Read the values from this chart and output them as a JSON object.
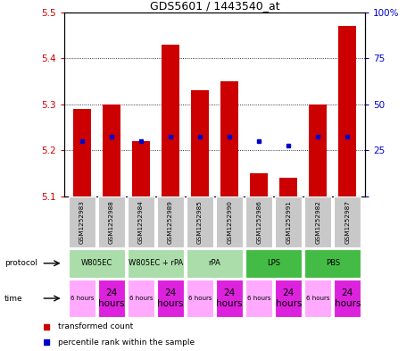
{
  "title": "GDS5601 / 1443540_at",
  "samples": [
    "GSM1252983",
    "GSM1252988",
    "GSM1252984",
    "GSM1252989",
    "GSM1252985",
    "GSM1252990",
    "GSM1252986",
    "GSM1252991",
    "GSM1252982",
    "GSM1252987"
  ],
  "bar_bottoms": [
    5.1,
    5.1,
    5.1,
    5.1,
    5.1,
    5.1,
    5.1,
    5.1,
    5.1,
    5.1
  ],
  "bar_tops": [
    5.29,
    5.3,
    5.22,
    5.43,
    5.33,
    5.35,
    5.15,
    5.14,
    5.3,
    5.47
  ],
  "blue_dot_y": [
    5.22,
    5.23,
    5.22,
    5.23,
    5.23,
    5.23,
    5.22,
    5.21,
    5.23,
    5.23
  ],
  "ylim_left": [
    5.1,
    5.5
  ],
  "ylim_right": [
    0,
    100
  ],
  "yticks_left": [
    5.1,
    5.2,
    5.3,
    5.4,
    5.5
  ],
  "yticks_right": [
    0,
    25,
    50,
    75,
    100
  ],
  "bar_color": "#cc0000",
  "blue_color": "#0000cc",
  "left_axis_color": "#cc0000",
  "right_axis_color": "#0000cc",
  "sample_bg": "#c8c8c8",
  "protocol_light": "#aaddaa",
  "protocol_dark": "#44bb44",
  "time_light": "#ffaaff",
  "time_dark": "#dd22dd",
  "legend_red_label": "transformed count",
  "legend_blue_label": "percentile rank within the sample",
  "protocol_data": [
    {
      "label": "W805EC",
      "start": 0,
      "end": 2,
      "dark": false
    },
    {
      "label": "W805EC + rPA",
      "start": 2,
      "end": 4,
      "dark": false
    },
    {
      "label": "rPA",
      "start": 4,
      "end": 6,
      "dark": false
    },
    {
      "label": "LPS",
      "start": 6,
      "end": 8,
      "dark": true
    },
    {
      "label": "PBS",
      "start": 8,
      "end": 10,
      "dark": true
    }
  ],
  "times": [
    "6 hours",
    "24\nhours",
    "6 hours",
    "24\nhours",
    "6 hours",
    "24\nhours",
    "6 hours",
    "24\nhours",
    "6 hours",
    "24\nhours"
  ]
}
